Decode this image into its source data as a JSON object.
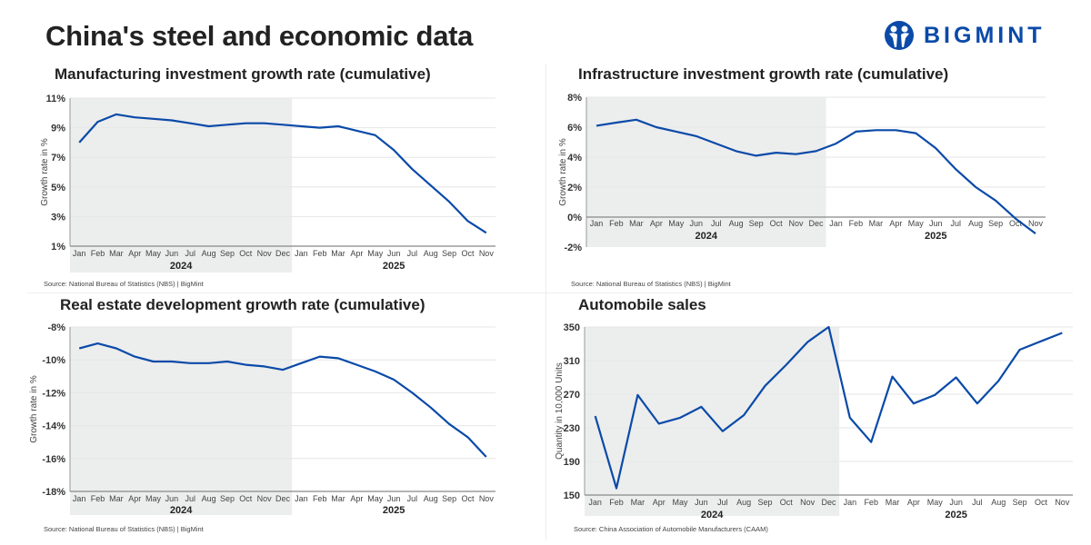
{
  "page": {
    "title": "China's steel and economic data",
    "logo_text": "BIGMINT",
    "accent_color": "#0a4aa8",
    "shade_color": "#eceded"
  },
  "chart_data": [
    {
      "type": "line",
      "title": "Manufacturing investment growth rate (cumulative)",
      "ylabel": "Growth rate in %",
      "source": "Source: National Bureau of Statistics (NBS) |  BigMint",
      "x": [
        "Jan",
        "Feb",
        "Mar",
        "Apr",
        "May",
        "Jun",
        "Jul",
        "Aug",
        "Sep",
        "Oct",
        "Nov",
        "Dec",
        "Jan",
        "Feb",
        "Mar",
        "Apr",
        "May",
        "Jun",
        "Jul",
        "Aug",
        "Sep",
        "Oct",
        "Nov"
      ],
      "years": [
        "2024",
        "2025"
      ],
      "shaded_period": "2024",
      "ylim": [
        1,
        11
      ],
      "yticks": [
        1,
        3,
        5,
        7,
        9,
        11
      ],
      "ytick_labels": [
        "1%",
        "3%",
        "5%",
        "7%",
        "9%",
        "11%"
      ],
      "grid": true,
      "values": [
        8.0,
        9.4,
        9.9,
        9.7,
        9.6,
        9.5,
        9.3,
        9.1,
        9.2,
        9.3,
        9.3,
        9.2,
        9.1,
        9.0,
        9.1,
        8.8,
        8.5,
        7.5,
        6.2,
        5.1,
        4.0,
        2.7,
        1.9
      ]
    },
    {
      "type": "line",
      "title": "Infrastructure investment growth rate (cumulative)",
      "ylabel": "Growth rate in %",
      "source": "Source: National Bureau of Statistics (NBS) |  BigMint",
      "x": [
        "Jan",
        "Feb",
        "Mar",
        "Apr",
        "May",
        "Jun",
        "Jul",
        "Aug",
        "Sep",
        "Oct",
        "Nov",
        "Dec",
        "Jan",
        "Feb",
        "Mar",
        "Apr",
        "May",
        "Jun",
        "Jul",
        "Aug",
        "Sep",
        "Oct",
        "Nov"
      ],
      "years": [
        "2024",
        "2025"
      ],
      "shaded_period": "2024",
      "ylim": [
        -2,
        8
      ],
      "yticks": [
        -2,
        0,
        2,
        4,
        6,
        8
      ],
      "ytick_labels": [
        "-2%",
        "0%",
        "2%",
        "4%",
        "6%",
        "8%"
      ],
      "grid": true,
      "values": [
        6.1,
        6.3,
        6.5,
        6.0,
        5.7,
        5.4,
        4.9,
        4.4,
        4.1,
        4.3,
        4.2,
        4.4,
        4.9,
        5.7,
        5.8,
        5.8,
        5.6,
        4.6,
        3.2,
        2.0,
        1.1,
        -0.1,
        -1.1
      ]
    },
    {
      "type": "line",
      "title": "Real estate development growth rate (cumulative)",
      "ylabel": "Growth rate in %",
      "source": "Source: National Bureau of Statistics (NBS) |  BigMint",
      "x": [
        "Jan",
        "Feb",
        "Mar",
        "Apr",
        "May",
        "Jun",
        "Jul",
        "Aug",
        "Sep",
        "Oct",
        "Nov",
        "Dec",
        "Jan",
        "Feb",
        "Mar",
        "Apr",
        "May",
        "Jun",
        "Jul",
        "Aug",
        "Sep",
        "Oct",
        "Nov"
      ],
      "years": [
        "2024",
        "2025"
      ],
      "shaded_period": "2024",
      "ylim": [
        -18,
        -8
      ],
      "yticks": [
        -18,
        -16,
        -14,
        -12,
        -10,
        -8
      ],
      "ytick_labels": [
        "-18%",
        "-16%",
        "-14%",
        "-12%",
        "-10%",
        "-8%"
      ],
      "grid": true,
      "values": [
        -9.3,
        -9.0,
        -9.3,
        -9.8,
        -10.1,
        -10.1,
        -10.2,
        -10.2,
        -10.1,
        -10.3,
        -10.4,
        -10.6,
        -10.2,
        -9.8,
        -9.9,
        -10.3,
        -10.7,
        -11.2,
        -12.0,
        -12.9,
        -13.9,
        -14.7,
        -15.9
      ]
    },
    {
      "type": "line",
      "title": "Automobile sales",
      "ylabel": "Quantity in 10,000 Units",
      "source": "Source: China Association of Automobile Manufacturers (CAAM)",
      "x": [
        "Jan",
        "Feb",
        "Mar",
        "Apr",
        "May",
        "Jun",
        "Jul",
        "Aug",
        "Sep",
        "Oct",
        "Nov",
        "Dec",
        "Jan",
        "Feb",
        "Mar",
        "Apr",
        "May",
        "Jun",
        "Jul",
        "Aug",
        "Sep",
        "Oct",
        "Nov"
      ],
      "years": [
        "2024",
        "2025"
      ],
      "shaded_period": "2024",
      "ylim": [
        150,
        350
      ],
      "yticks": [
        150,
        190,
        230,
        270,
        310,
        350
      ],
      "ytick_labels": [
        "150",
        "190",
        "230",
        "270",
        "310",
        "350"
      ],
      "grid": true,
      "values": [
        244,
        158,
        269,
        235,
        242,
        255,
        226,
        245,
        280,
        305,
        332,
        350,
        242,
        213,
        291,
        259,
        269,
        290,
        259,
        286,
        323,
        333,
        343
      ]
    }
  ]
}
